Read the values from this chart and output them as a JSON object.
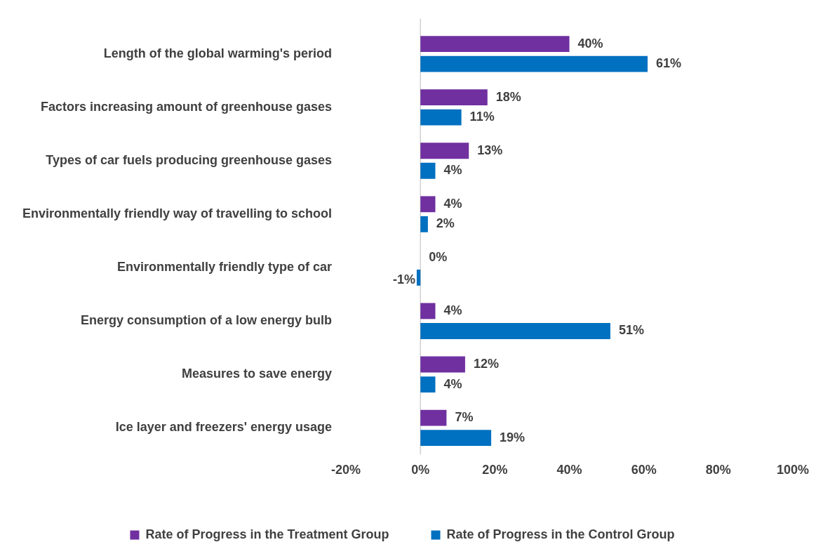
{
  "chart_data": {
    "type": "bar",
    "orientation": "horizontal",
    "categories": [
      "Length of the global warming's period",
      "Factors increasing amount of greenhouse gases",
      "Types of car fuels producing greenhouse gases",
      "Environmentally friendly way of travelling to school",
      "Environmentally friendly type of car",
      "Energy consumption of a low energy bulb",
      "Measures to save energy",
      "Ice layer and freezers' energy usage"
    ],
    "series": [
      {
        "name": "Rate of Progress in the Treatment Group",
        "color": "#7030a0",
        "values": [
          40,
          18,
          13,
          4,
          0,
          4,
          12,
          7
        ],
        "value_labels": [
          "40%",
          "18%",
          "13%",
          "4%",
          "0%",
          "4%",
          "12%",
          "7%"
        ]
      },
      {
        "name": "Rate of Progress in the Control Group",
        "color": "#0070c0",
        "values": [
          61,
          11,
          4,
          2,
          -1,
          51,
          4,
          19
        ],
        "value_labels": [
          "61%",
          "11%",
          "4%",
          "2%",
          "-1%",
          "51%",
          "4%",
          "19%"
        ]
      }
    ],
    "xlim": [
      -20,
      100
    ],
    "xticks": [
      {
        "value": -20,
        "label": "-20%"
      },
      {
        "value": 0,
        "label": "0%"
      },
      {
        "value": 20,
        "label": "20%"
      },
      {
        "value": 40,
        "label": "40%"
      },
      {
        "value": 60,
        "label": "60%"
      },
      {
        "value": 80,
        "label": "80%"
      },
      {
        "value": 100,
        "label": "100%"
      }
    ],
    "legend": "bottom"
  }
}
